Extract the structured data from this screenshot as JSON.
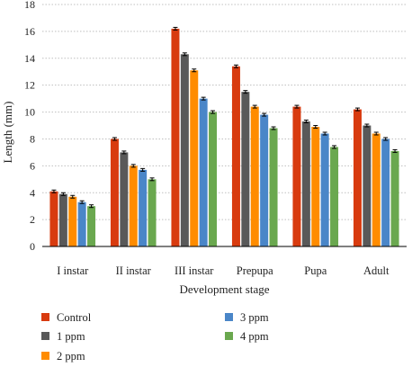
{
  "chart_data": {
    "type": "bar",
    "xlabel": "Development stage",
    "ylabel": "Length (mm)",
    "ylim": [
      -1,
      18
    ],
    "yticks": [
      0,
      2,
      4,
      6,
      8,
      10,
      12,
      14,
      16,
      18
    ],
    "grid": true,
    "legend_position": "bottom",
    "error_bars": true,
    "categories": [
      "I instar",
      "II instar",
      "III instar",
      "Prepupa",
      "Pupa",
      "Adult"
    ],
    "series": [
      {
        "name": "Control",
        "color": "#d83b0f",
        "values": [
          4.1,
          8.0,
          16.2,
          13.4,
          10.4,
          10.2
        ],
        "errors": [
          0.1,
          0.1,
          0.1,
          0.1,
          0.1,
          0.1
        ]
      },
      {
        "name": "1 ppm",
        "color": "#595959",
        "values": [
          3.9,
          7.0,
          14.3,
          11.5,
          9.3,
          9.0
        ],
        "errors": [
          0.1,
          0.1,
          0.1,
          0.1,
          0.1,
          0.1
        ]
      },
      {
        "name": "2 ppm",
        "color": "#ff8c00",
        "values": [
          3.7,
          6.0,
          13.1,
          10.4,
          8.9,
          8.4
        ],
        "errors": [
          0.1,
          0.1,
          0.1,
          0.1,
          0.1,
          0.1
        ]
      },
      {
        "name": "3 ppm",
        "color": "#4a86c8",
        "values": [
          3.3,
          5.7,
          11.0,
          9.8,
          8.4,
          8.0
        ],
        "errors": [
          0.1,
          0.1,
          0.1,
          0.1,
          0.1,
          0.1
        ]
      },
      {
        "name": "4 ppm",
        "color": "#6aa84f",
        "values": [
          3.0,
          5.0,
          10.0,
          8.8,
          7.4,
          7.1
        ],
        "errors": [
          0.1,
          0.1,
          0.1,
          0.1,
          0.1,
          0.1
        ]
      }
    ]
  }
}
